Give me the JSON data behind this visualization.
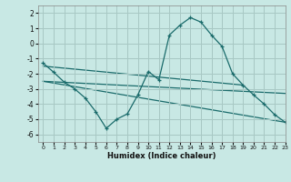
{
  "bg_color": "#c8e8e4",
  "grid_color": "#a8c8c4",
  "line_color": "#1a6b6b",
  "xlabel": "Humidex (Indice chaleur)",
  "xlim": [
    -0.5,
    23
  ],
  "ylim": [
    -6.5,
    2.5
  ],
  "yticks": [
    -6,
    -5,
    -4,
    -3,
    -2,
    -1,
    0,
    1,
    2
  ],
  "xticks": [
    0,
    1,
    2,
    3,
    4,
    5,
    6,
    7,
    8,
    9,
    10,
    11,
    12,
    13,
    14,
    15,
    16,
    17,
    18,
    19,
    20,
    21,
    22,
    23
  ],
  "main_series": {
    "x": [
      0,
      1,
      2,
      3,
      4,
      5,
      6,
      7,
      8,
      9,
      10,
      11,
      12,
      13,
      14,
      15,
      16,
      17,
      18,
      19,
      20,
      21,
      22,
      23
    ],
    "y": [
      -1.3,
      -1.9,
      -2.55,
      -3.0,
      -3.6,
      -4.5,
      -5.6,
      -5.0,
      -4.65,
      -3.4,
      -1.85,
      -2.4,
      0.55,
      1.2,
      1.7,
      1.4,
      0.55,
      -0.2,
      -2.0,
      -2.75,
      -3.4,
      -4.0,
      -4.7,
      -5.2
    ]
  },
  "lines": [
    {
      "x": [
        0,
        19
      ],
      "y": [
        -1.5,
        -2.75
      ]
    },
    {
      "x": [
        0,
        23
      ],
      "y": [
        -1.5,
        -5.2
      ]
    },
    {
      "x": [
        0,
        23
      ],
      "y": [
        -1.5,
        -5.2
      ]
    }
  ],
  "straight_lines": [
    {
      "x": [
        0,
        19
      ],
      "y": [
        -1.5,
        -2.75
      ]
    },
    {
      "x": [
        0,
        23
      ],
      "y": [
        -2.5,
        -5.2
      ]
    },
    {
      "x": [
        0,
        23
      ],
      "y": [
        -2.5,
        -3.3
      ]
    }
  ]
}
